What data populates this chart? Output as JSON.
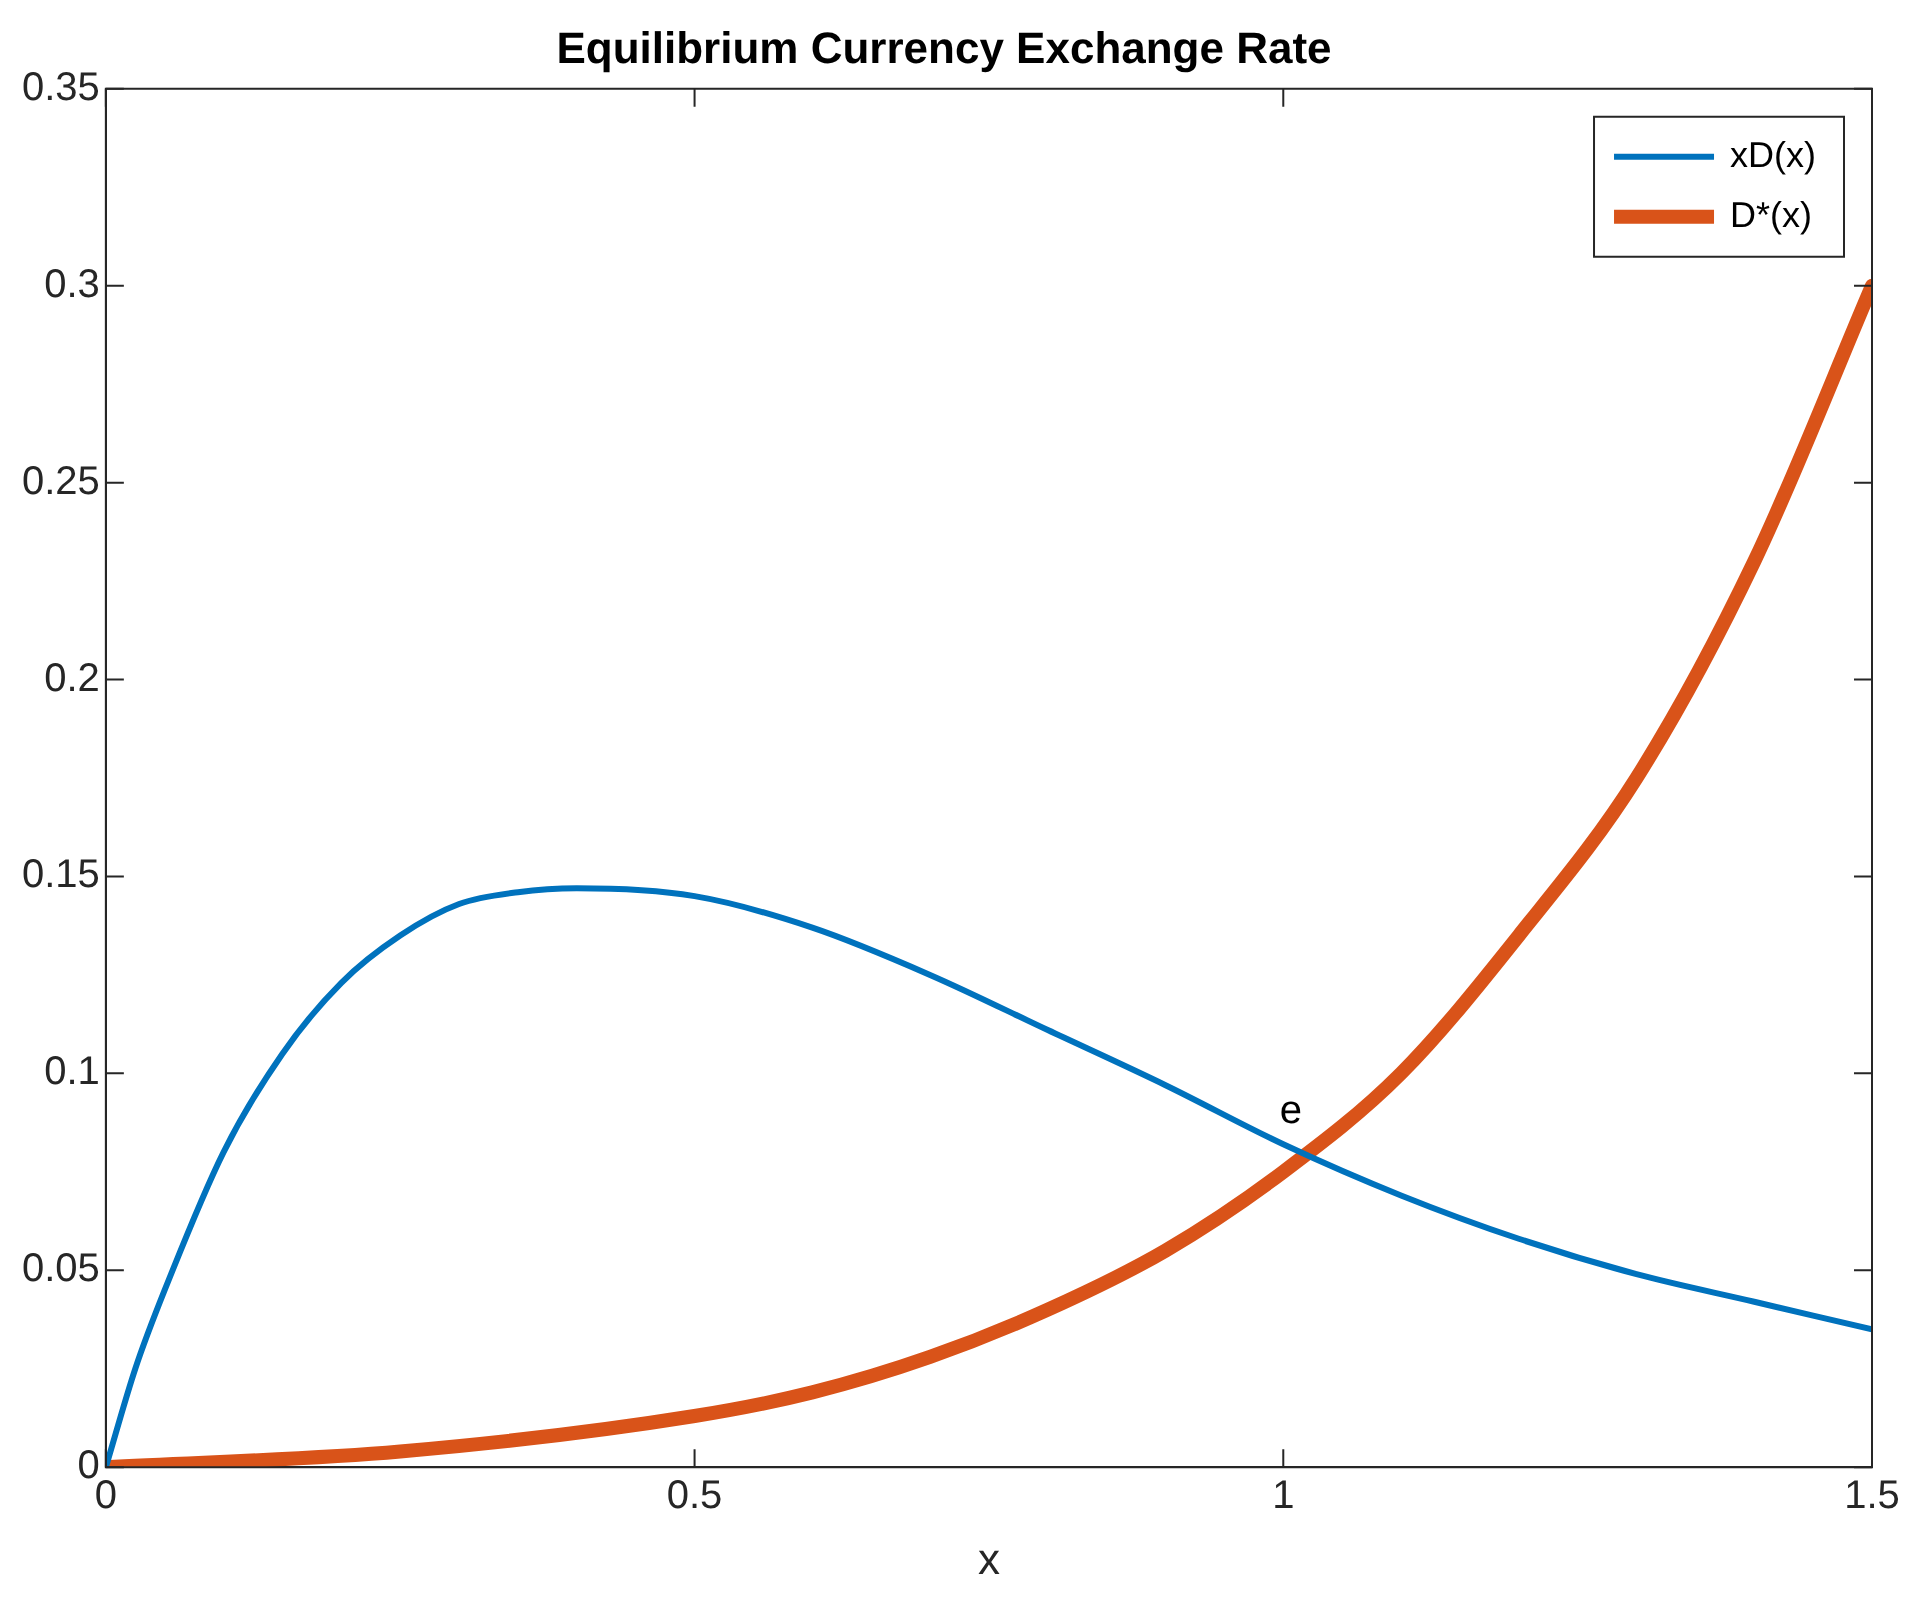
{
  "chart_data": {
    "type": "line",
    "title": "Equilibrium Currency Exchange Rate",
    "xlabel": "x",
    "xlim": [
      0,
      1.5
    ],
    "xticks": [
      0,
      0.5,
      1,
      1.5
    ],
    "ylim": [
      0,
      0.35
    ],
    "yticks": [
      0,
      0.05,
      0.1,
      0.15,
      0.2,
      0.25,
      0.3,
      0.35
    ],
    "grid": false,
    "legend": "top right",
    "marker": "none",
    "line_style": "solid",
    "series": [
      {
        "name": "xD(x)",
        "color": "#0072bd",
        "x": [
          0,
          0.025,
          0.05,
          0.1,
          0.15,
          0.2,
          0.25,
          0.3,
          0.35,
          0.4,
          0.5,
          0.6,
          0.7,
          0.8,
          0.9,
          1.0,
          1.1,
          1.2,
          1.3,
          1.4,
          1.5
        ],
        "values": [
          0,
          0.025,
          0.045,
          0.08,
          0.105,
          0.123,
          0.135,
          0.143,
          0.146,
          0.147,
          0.145,
          0.137,
          0.125,
          0.111,
          0.097,
          0.082,
          0.069,
          0.058,
          0.049,
          0.042,
          0.035
        ]
      },
      {
        "name": "D*(x)",
        "color": "#d95319",
        "x": [
          0,
          0.25,
          0.5,
          0.6,
          0.7,
          0.8,
          0.9,
          1.0,
          1.1,
          1.2,
          1.3,
          1.4,
          1.5
        ],
        "values": [
          0,
          0.004,
          0.013,
          0.019,
          0.028,
          0.04,
          0.055,
          0.075,
          0.1,
          0.135,
          0.175,
          0.23,
          0.3
        ]
      }
    ],
    "annotations": [
      {
        "text": "e",
        "x": 1.02,
        "y": 0.08
      }
    ]
  }
}
